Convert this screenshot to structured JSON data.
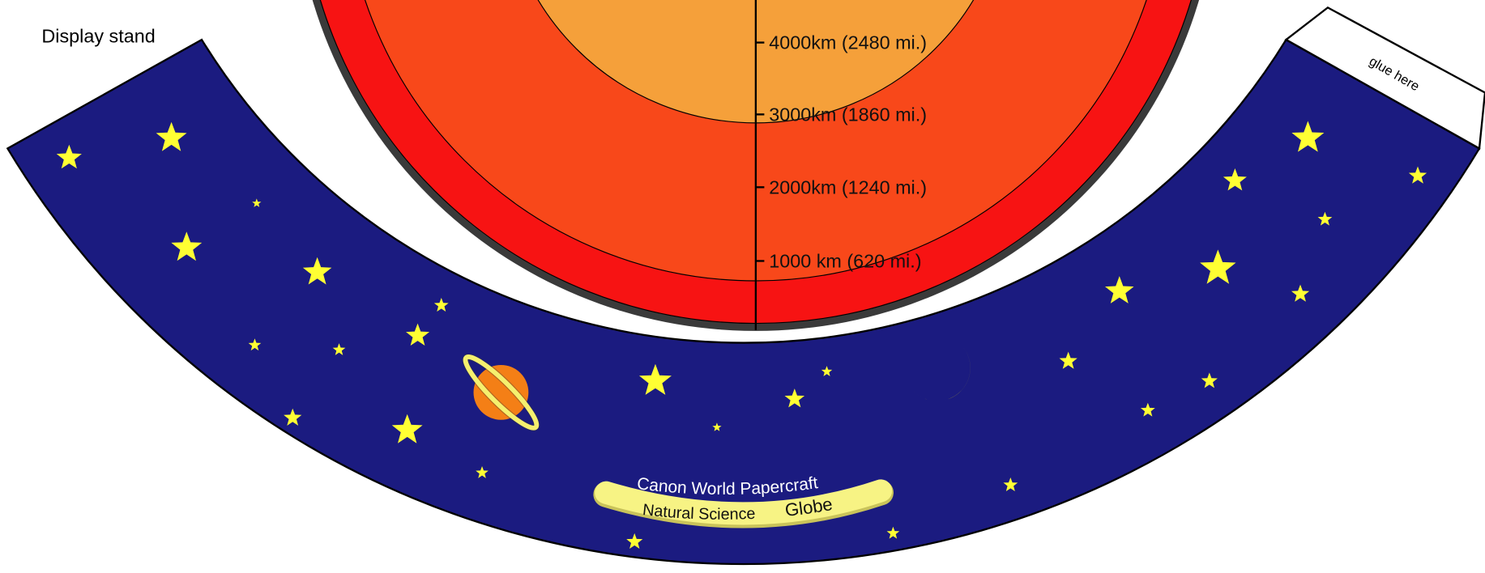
{
  "header": {
    "title": "Display stand"
  },
  "scale": {
    "labels": [
      "4000km (2480 mi.)",
      "3000km (1860 mi.)",
      "2000km (1240 mi.)",
      "1000 km (620 mi.)"
    ]
  },
  "tab": {
    "label": "glue here"
  },
  "banner": {
    "top": "Canon World Papercraft",
    "left": "Natural Science",
    "right": "Globe"
  }
}
